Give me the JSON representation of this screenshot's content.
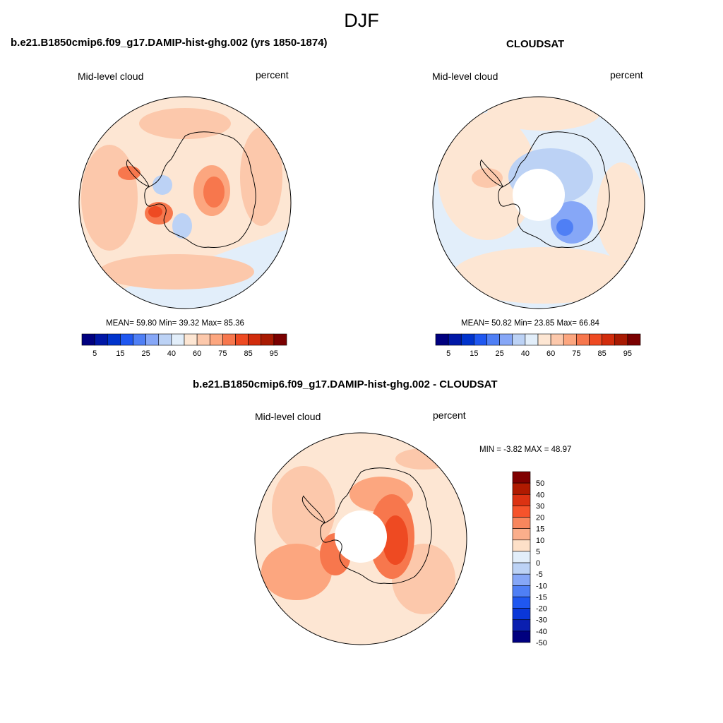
{
  "figure": {
    "season": "DJF"
  },
  "panels": {
    "model": {
      "title": "b.e21.B1850cmip6.f09_g17.DAMIP-hist-ghg.002 (yrs 1850-1874)",
      "variable": "Mid-level cloud",
      "units": "percent",
      "stats": "MEAN=  59.80  Min=  39.32  Max=  85.36",
      "colorbar_ticks": [
        "5",
        "15",
        "25",
        "40",
        "60",
        "75",
        "85",
        "95"
      ]
    },
    "obs": {
      "title": "CLOUDSAT",
      "variable": "Mid-level cloud",
      "units": "percent",
      "stats": "MEAN=  50.82  Min=  23.85  Max=  66.84",
      "colorbar_ticks": [
        "5",
        "15",
        "25",
        "40",
        "60",
        "75",
        "85",
        "95"
      ]
    },
    "diff": {
      "title": "b.e21.B1850cmip6.f09_g17.DAMIP-hist-ghg.002 - CLOUDSAT",
      "variable": "Mid-level cloud",
      "units": "percent",
      "stats": "MIN =  -3.82 MAX =  48.97",
      "colorbar_ticks": [
        "50",
        "40",
        "30",
        "20",
        "15",
        "10",
        "5",
        "0",
        "-5",
        "-10",
        "-15",
        "-20",
        "-30",
        "-40",
        "-50"
      ]
    }
  },
  "palettes": {
    "abs": [
      "#00007f",
      "#0017a6",
      "#0033cc",
      "#1f57f0",
      "#4f7ff5",
      "#86a7f7",
      "#bcd2f5",
      "#e2eefa",
      "#fde6d3",
      "#fcc8ab",
      "#fca67f",
      "#f7774d",
      "#ee4a22",
      "#d12c0c",
      "#a81a02",
      "#7a0000"
    ],
    "diff": [
      "#800000",
      "#b01a00",
      "#dc3212",
      "#f6532b",
      "#f8865d",
      "#fbae8b",
      "#fde0c8",
      "#e2eefa",
      "#bcd2f5",
      "#86a7f7",
      "#4f7ff5",
      "#1f57f0",
      "#0a37d8",
      "#0a1fb0",
      "#00007f"
    ],
    "field_colors": {
      "ocean_light": "#fde6d3",
      "ocean_med": "#fcc8ab",
      "ocean_blue": "#e2eefa",
      "warm": "#fca67f",
      "hot": "#f7774d",
      "very_hot": "#ee4a22",
      "pale_blue": "#bcd2f5",
      "blue": "#86a7f7",
      "deep_blue": "#4f7ff5"
    }
  }
}
